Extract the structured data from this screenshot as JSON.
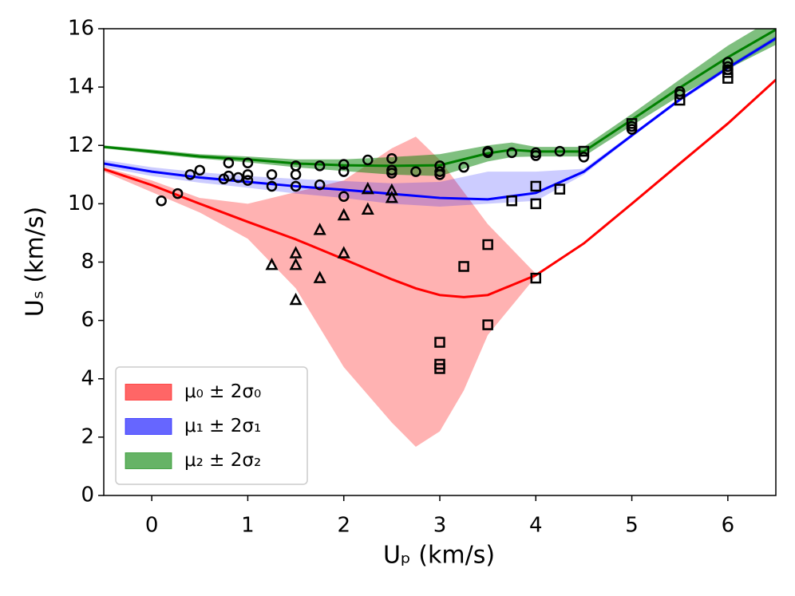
{
  "chart_data": {
    "type": "line",
    "xlabel": "Uₚ (km/s)",
    "ylabel": "Uₛ (km/s)",
    "xlim": [
      -0.5,
      6.5
    ],
    "ylim": [
      0,
      16
    ],
    "xticks": [
      0,
      1,
      2,
      3,
      4,
      5,
      6
    ],
    "yticks": [
      0,
      2,
      4,
      6,
      8,
      10,
      12,
      14,
      16
    ],
    "legend": "lower left",
    "series": [
      {
        "name": "μ₀ ± 2σ₀",
        "color": "#ff0000",
        "x": [
          -0.5,
          0,
          0.5,
          1,
          1.5,
          2,
          2.5,
          2.75,
          3,
          3.25,
          3.5,
          4,
          4.5,
          5,
          5.5,
          6,
          6.5
        ],
        "values": [
          11.19,
          10.64,
          10.0,
          9.38,
          8.78,
          8.1,
          7.41,
          7.1,
          6.87,
          6.8,
          6.87,
          7.55,
          8.64,
          10.0,
          11.38,
          12.75,
          14.25
        ],
        "lower": [
          11.1,
          10.4,
          9.7,
          8.8,
          7.1,
          4.4,
          2.5,
          1.67,
          2.2,
          3.6,
          5.5,
          7.5,
          8.6,
          9.95,
          11.33,
          12.7,
          14.2
        ],
        "upper": [
          11.25,
          10.8,
          10.2,
          10.0,
          10.4,
          10.8,
          11.9,
          12.3,
          11.5,
          10.4,
          9.3,
          7.6,
          8.68,
          10.05,
          11.43,
          12.8,
          14.3
        ]
      },
      {
        "name": "μ₁ ± 2σ₁",
        "color": "#0000ff",
        "x": [
          -0.5,
          0,
          0.5,
          1,
          1.5,
          2,
          2.5,
          3,
          3.5,
          4,
          4.5,
          5,
          5.5,
          6,
          6.5
        ],
        "values": [
          11.38,
          11.1,
          10.9,
          10.75,
          10.6,
          10.48,
          10.34,
          10.2,
          10.15,
          10.37,
          11.1,
          12.34,
          13.57,
          14.66,
          15.67
        ],
        "lower": [
          11.25,
          10.95,
          10.72,
          10.55,
          10.35,
          10.2,
          10.0,
          9.9,
          10.0,
          10.1,
          11.0,
          12.28,
          13.5,
          14.58,
          15.58
        ],
        "upper": [
          11.5,
          11.25,
          11.08,
          10.95,
          10.85,
          10.78,
          10.7,
          10.75,
          11.1,
          11.1,
          11.2,
          12.4,
          13.64,
          14.74,
          15.76
        ]
      },
      {
        "name": "μ₂ ± 2σ₂",
        "color": "#008000",
        "x": [
          -0.5,
          0,
          0.5,
          1,
          1.5,
          2,
          2.5,
          3,
          3.5,
          3.75,
          4,
          4.5,
          5,
          5.5,
          6,
          6.5
        ],
        "values": [
          11.95,
          11.79,
          11.62,
          11.52,
          11.38,
          11.32,
          11.3,
          11.32,
          11.73,
          11.85,
          11.79,
          11.79,
          12.88,
          13.98,
          15.02,
          15.97
        ],
        "lower": [
          11.9,
          11.72,
          11.55,
          11.42,
          11.25,
          11.12,
          11.0,
          10.95,
          11.45,
          11.6,
          11.62,
          11.62,
          12.68,
          13.7,
          14.62,
          15.45
        ],
        "upper": [
          12.0,
          11.86,
          11.7,
          11.62,
          11.52,
          11.52,
          11.6,
          11.7,
          12.0,
          12.1,
          11.95,
          11.95,
          13.08,
          14.26,
          15.42,
          16.4
        ]
      }
    ],
    "points": [
      {
        "marker": "circle",
        "x": [
          0.1,
          0.27,
          0.4,
          0.5,
          0.75,
          0.8,
          0.8,
          0.9,
          1,
          1,
          1,
          1.25,
          1.25,
          1.5,
          1.5,
          1.5,
          1.75,
          1.75,
          2,
          2,
          2,
          2.25,
          2.5,
          2.5,
          2.5,
          2.75,
          3,
          3,
          3,
          3.25,
          3.5,
          3.5,
          3.75,
          4,
          4,
          4.25,
          4.5,
          5,
          5,
          5.5,
          5.5,
          6,
          6,
          6
        ],
        "values": [
          10.1,
          10.35,
          11.0,
          11.15,
          10.85,
          11.4,
          10.95,
          10.9,
          11.4,
          11.0,
          10.8,
          11.0,
          10.6,
          11.3,
          11.0,
          10.6,
          11.3,
          10.65,
          11.35,
          11.1,
          10.25,
          11.5,
          11.55,
          11.15,
          11.05,
          11.1,
          11.3,
          11.1,
          11.0,
          11.25,
          11.8,
          11.75,
          11.75,
          11.75,
          11.65,
          11.8,
          11.6,
          12.65,
          12.55,
          13.85,
          13.75,
          14.85,
          14.7,
          14.6
        ]
      },
      {
        "marker": "triangle",
        "x": [
          1.25,
          1.5,
          1.5,
          1.5,
          1.75,
          1.75,
          2,
          2,
          2.25,
          2.25,
          2.5,
          2.5
        ],
        "values": [
          7.9,
          8.3,
          7.9,
          6.7,
          9.1,
          7.45,
          9.6,
          8.3,
          9.8,
          10.5,
          10.45,
          10.2
        ]
      },
      {
        "marker": "square",
        "x": [
          3,
          3,
          3,
          3.25,
          3.5,
          3.5,
          3.75,
          4,
          4,
          4,
          4.25,
          4.5,
          5,
          5.5,
          6,
          6
        ],
        "values": [
          5.25,
          4.5,
          4.35,
          7.85,
          8.6,
          5.85,
          10.1,
          10.6,
          10.0,
          7.45,
          10.5,
          11.8,
          12.75,
          13.55,
          14.5,
          14.3
        ]
      }
    ]
  }
}
